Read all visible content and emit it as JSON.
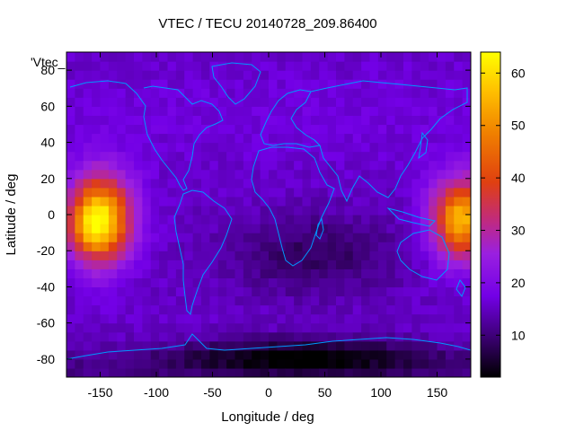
{
  "chart_data": {
    "type": "heatmap",
    "title": "VTEC / TECU 20140728_209.86400",
    "xlabel": "Longitude / deg",
    "ylabel": "Latitude / deg",
    "legend_key": "'Vtec_",
    "xlim": [
      -180,
      180
    ],
    "ylim": [
      -90,
      90
    ],
    "x_ticks": [
      -150,
      -100,
      -50,
      0,
      50,
      100,
      150
    ],
    "y_ticks": [
      -80,
      -60,
      -40,
      -20,
      0,
      20,
      40,
      60,
      80
    ],
    "colorbar": {
      "range": [
        2,
        64
      ],
      "ticks": [
        10,
        20,
        30,
        40,
        50,
        60
      ],
      "colormap": [
        "#000000",
        "#3a0070",
        "#7300e6",
        "#9a20e0",
        "#c02a80",
        "#e04010",
        "#f08000",
        "#ffc000",
        "#ffff00"
      ]
    },
    "grid": false,
    "features": [
      {
        "region": "eastern Pacific crest",
        "lon": -158,
        "lat": -2,
        "vtec": 63
      },
      {
        "region": "western Pacific crest",
        "lon": 165,
        "lat": -2,
        "vtec": 58
      },
      {
        "region": "Antarctic minimum",
        "lon": 30,
        "lat": -75,
        "vtec": 2
      },
      {
        "region": "South Atlantic / Africa low",
        "lon": 40,
        "lat": -20,
        "vtec": 9
      },
      {
        "region": "northern mid-latitude background",
        "lon": 0,
        "lat": 60,
        "vtec": 16
      }
    ]
  }
}
